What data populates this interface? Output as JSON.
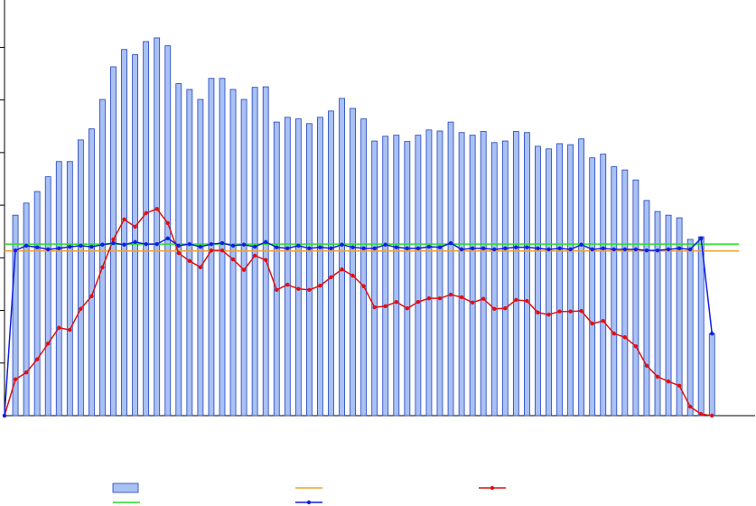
{
  "chart_data": {
    "type": "combo",
    "categories": [
      null,
      null,
      null,
      null,
      null,
      null,
      null,
      null,
      null,
      null,
      null,
      null,
      null,
      null,
      null,
      null,
      null,
      null,
      null,
      null,
      null,
      null,
      null,
      null,
      null,
      null,
      null,
      null,
      null,
      null,
      null,
      null,
      null,
      null,
      null,
      null,
      null,
      null,
      null,
      null,
      null,
      null,
      null,
      null,
      null,
      null,
      null,
      null,
      null,
      null,
      null,
      null,
      null,
      null,
      null,
      null,
      null,
      null,
      null,
      null,
      null,
      null,
      null,
      null,
      null,
      null
    ],
    "ylim": [
      0,
      7.9
    ],
    "yticks": [
      1,
      2,
      3,
      4,
      5,
      6,
      7
    ],
    "series": [
      {
        "type": "bar",
        "color": "#a9c1f3",
        "values": [
          null,
          3.81,
          4.04,
          4.26,
          4.54,
          4.83,
          4.83,
          5.24,
          5.45,
          6.01,
          6.63,
          6.96,
          6.86,
          7.11,
          7.18,
          7.03,
          6.31,
          6.2,
          6.01,
          6.41,
          6.41,
          6.2,
          6.01,
          6.24,
          6.25,
          5.58,
          5.67,
          5.64,
          5.55,
          5.67,
          5.79,
          6.03,
          5.84,
          5.64,
          5.22,
          5.31,
          5.33,
          5.21,
          5.33,
          5.43,
          5.41,
          5.58,
          5.38,
          5.33,
          5.4,
          5.19,
          5.22,
          5.4,
          5.38,
          5.12,
          5.07,
          5.17,
          5.15,
          5.26,
          4.9,
          4.97,
          4.73,
          4.67,
          4.48,
          4.09,
          3.88,
          3.81,
          3.76,
          3.35,
          3.4,
          1.56
        ]
      },
      {
        "type": "hline",
        "color": "#f0a030",
        "value": 3.13
      },
      {
        "type": "line",
        "color": "#e01010",
        "values": [
          0,
          0.69,
          0.82,
          1.07,
          1.37,
          1.67,
          1.63,
          2.03,
          2.27,
          2.82,
          3.35,
          3.73,
          3.59,
          3.85,
          3.93,
          3.66,
          3.09,
          2.94,
          2.82,
          3.14,
          3.14,
          2.97,
          2.77,
          3.04,
          2.96,
          2.39,
          2.49,
          2.41,
          2.39,
          2.47,
          2.63,
          2.78,
          2.66,
          2.46,
          2.06,
          2.08,
          2.16,
          2.04,
          2.16,
          2.23,
          2.23,
          2.3,
          2.25,
          2.15,
          2.22,
          2.03,
          2.04,
          2.2,
          2.18,
          1.96,
          1.92,
          1.98,
          1.98,
          1.99,
          1.75,
          1.8,
          1.56,
          1.49,
          1.32,
          0.95,
          0.74,
          0.65,
          0.57,
          0.17,
          0.03,
          0
        ]
      },
      {
        "type": "hline",
        "color": "#20e020",
        "value": 3.26
      },
      {
        "type": "line",
        "color": "#1020e0",
        "values": [
          0,
          3.14,
          3.23,
          3.2,
          3.16,
          3.18,
          3.21,
          3.23,
          3.21,
          3.25,
          3.28,
          3.25,
          3.3,
          3.26,
          3.26,
          3.37,
          3.23,
          3.26,
          3.21,
          3.26,
          3.28,
          3.23,
          3.25,
          3.21,
          3.3,
          3.2,
          3.18,
          3.23,
          3.18,
          3.2,
          3.18,
          3.25,
          3.2,
          3.18,
          3.18,
          3.25,
          3.2,
          3.18,
          3.18,
          3.21,
          3.2,
          3.28,
          3.16,
          3.18,
          3.18,
          3.16,
          3.18,
          3.2,
          3.2,
          3.18,
          3.16,
          3.18,
          3.16,
          3.25,
          3.16,
          3.18,
          3.16,
          3.16,
          3.16,
          3.14,
          3.14,
          3.16,
          3.18,
          3.16,
          3.37,
          1.56
        ]
      }
    ]
  }
}
